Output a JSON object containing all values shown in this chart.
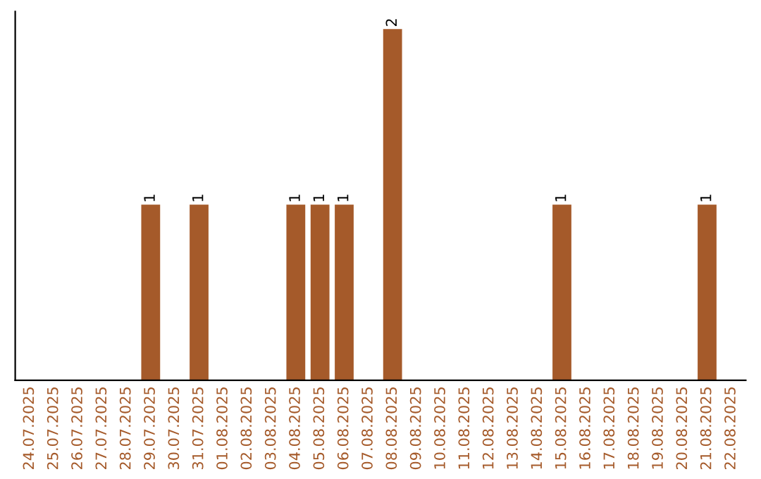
{
  "chart_data": {
    "type": "bar",
    "categories": [
      "24.07.2025",
      "25.07.2025",
      "26.07.2025",
      "27.07.2025",
      "28.07.2025",
      "29.07.2025",
      "30.07.2025",
      "31.07.2025",
      "01.08.2025",
      "02.08.2025",
      "03.08.2025",
      "04.08.2025",
      "05.08.2025",
      "06.08.2025",
      "07.08.2025",
      "08.08.2025",
      "09.08.2025",
      "10.08.2025",
      "11.08.2025",
      "12.08.2025",
      "13.08.2025",
      "14.08.2025",
      "15.08.2025",
      "16.08.2025",
      "17.08.2025",
      "18.08.2025",
      "19.08.2025",
      "20.08.2025",
      "21.08.2025",
      "22.08.2025"
    ],
    "values": [
      0,
      0,
      0,
      0,
      0,
      1,
      0,
      1,
      0,
      0,
      0,
      1,
      1,
      1,
      0,
      2,
      0,
      0,
      0,
      0,
      0,
      0,
      1,
      0,
      0,
      0,
      0,
      0,
      1,
      0
    ],
    "value_labels": [
      null,
      null,
      null,
      null,
      null,
      "1",
      null,
      "1",
      null,
      null,
      null,
      "1",
      "1",
      "1",
      null,
      "2",
      null,
      null,
      null,
      null,
      null,
      null,
      "1",
      null,
      null,
      null,
      null,
      null,
      "1",
      null
    ],
    "color": "#a55a2a",
    "ylim": [
      0,
      2.1
    ],
    "grid": false,
    "legend": false
  }
}
